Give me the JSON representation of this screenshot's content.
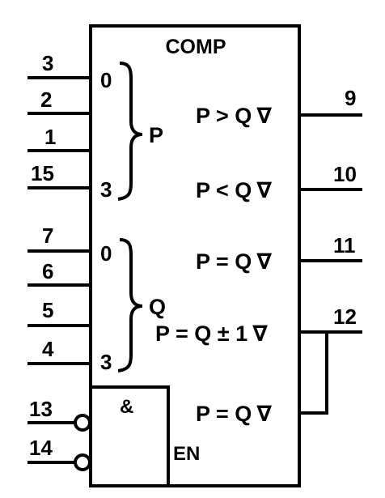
{
  "title": "COMP",
  "groups": {
    "p": {
      "label": "P",
      "bit_low": "0",
      "bit_high": "3"
    },
    "q": {
      "label": "Q",
      "bit_low": "0",
      "bit_high": "3"
    }
  },
  "inputs": {
    "p_pins": [
      "3",
      "2",
      "1",
      "15"
    ],
    "q_pins": [
      "7",
      "6",
      "5",
      "4"
    ],
    "control_pins": [
      "13",
      "14"
    ]
  },
  "outputs": [
    {
      "label": "P > Q",
      "pin": "9"
    },
    {
      "label": "P < Q",
      "pin": "10"
    },
    {
      "label": "P = Q",
      "pin": "11"
    },
    {
      "label": "P = Q ± 1",
      "pin": "12"
    },
    {
      "label": "P = Q",
      "pin": ""
    }
  ],
  "and_block": {
    "symbol": "&",
    "enable_label": "EN"
  },
  "open_collector_symbol": "∇"
}
